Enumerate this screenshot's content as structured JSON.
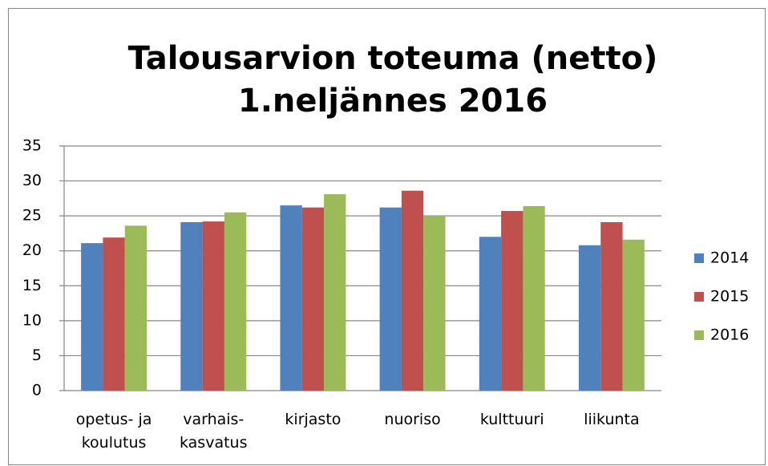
{
  "chart_data": {
    "type": "bar",
    "title": "Talousarvion toteuma (netto)",
    "subtitle": "1.neljännes 2016",
    "categories": [
      "opetus- ja\nkoulutus",
      "varhais-\nkasvatus",
      "kirjasto",
      "nuoriso",
      "kulttuuri",
      "liikunta"
    ],
    "series": [
      {
        "name": "2014",
        "color": "#4f81bd",
        "values": [
          21.1,
          24.1,
          26.5,
          26.2,
          22.0,
          20.8
        ]
      },
      {
        "name": "2015",
        "color": "#c0504d",
        "values": [
          21.9,
          24.2,
          26.2,
          28.6,
          25.7,
          24.1
        ]
      },
      {
        "name": "2016",
        "color": "#9bbb59",
        "values": [
          23.6,
          25.5,
          28.1,
          25.0,
          26.4,
          21.6
        ]
      }
    ],
    "ylim": [
      0,
      35
    ],
    "yticks": [
      0,
      5,
      10,
      15,
      20,
      25,
      30,
      35
    ],
    "grid": true,
    "legend": "right"
  }
}
